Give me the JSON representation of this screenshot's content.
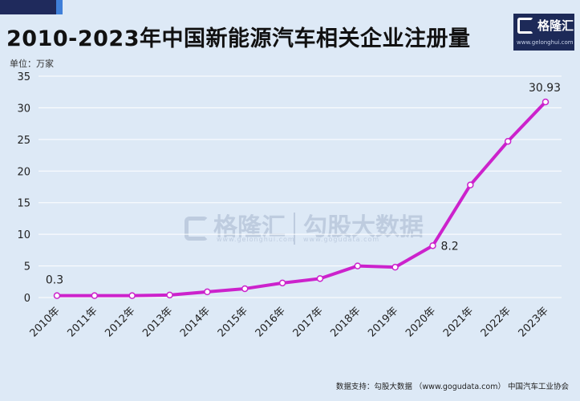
{
  "header": {
    "title": "2010-2023年中国新能源汽车相关企业注册量",
    "unit": "单位：万家"
  },
  "logo": {
    "name": "格隆汇",
    "url": "www.gelonghui.com"
  },
  "watermark": {
    "brand": "格隆汇",
    "brand_url": "www.gelonghui.com",
    "partner": "勾股大数据",
    "partner_url": "www.gogudata.com"
  },
  "source": "数据支持：勾股大数据 （www.gogudata.com） 中国汽车工业协会",
  "colors": {
    "line": "#cc22cc",
    "background": "#dde9f6",
    "grid": "#ffffff"
  },
  "chart_data": {
    "type": "line",
    "title": "2010-2023年中国新能源汽车相关企业注册量",
    "xlabel": "",
    "ylabel": "",
    "ylim": [
      0,
      35
    ],
    "yticks": [
      0,
      5,
      10,
      15,
      20,
      25,
      30,
      35
    ],
    "grid": true,
    "categories": [
      "2010年",
      "2011年",
      "2012年",
      "2013年",
      "2014年",
      "2015年",
      "2016年",
      "2017年",
      "2018年",
      "2019年",
      "2020年",
      "2021年",
      "2022年",
      "2023年"
    ],
    "series": [
      {
        "values": [
          0.3,
          0.3,
          0.3,
          0.4,
          0.9,
          1.4,
          2.3,
          3.0,
          5.0,
          4.8,
          8.2,
          17.8,
          24.7,
          30.93
        ]
      }
    ],
    "annotations": [
      {
        "index": 0,
        "text": "0.3"
      },
      {
        "index": 10,
        "text": "8.2"
      },
      {
        "index": 13,
        "text": "30.93"
      }
    ]
  }
}
